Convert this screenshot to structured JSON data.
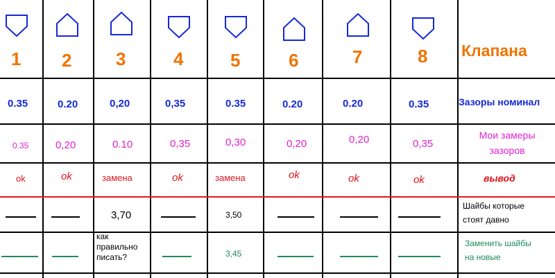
{
  "columns": [
    {
      "number": "1",
      "shape": "shield-down",
      "nominal": "0.35",
      "measured": "0.35",
      "result": "ok",
      "old_shim": "",
      "new_shim": ""
    },
    {
      "number": "2",
      "shape": "house-up",
      "nominal": "0.20",
      "measured": "0,20",
      "result": "ok",
      "old_shim": "",
      "new_shim": ""
    },
    {
      "number": "3",
      "shape": "house-up",
      "nominal": "0,20",
      "measured": "0.10",
      "result": "замена",
      "old_shim": "3,70",
      "new_shim": ""
    },
    {
      "number": "4",
      "shape": "shield-down",
      "nominal": "0,35",
      "measured": "0,35",
      "result": "ok",
      "old_shim": "",
      "new_shim": ""
    },
    {
      "number": "5",
      "shape": "shield-down",
      "nominal": "0.35",
      "measured": "0,30",
      "result": "замена",
      "old_shim": "3,50",
      "new_shim": "3,45"
    },
    {
      "number": "6",
      "shape": "house-up",
      "nominal": "0.20",
      "measured": "0,20",
      "result": "ok",
      "old_shim": "",
      "new_shim": ""
    },
    {
      "number": "7",
      "shape": "house-up",
      "nominal": "0.20",
      "measured": "0,20",
      "result": "ok",
      "old_shim": "",
      "new_shim": ""
    },
    {
      "number": "8",
      "shape": "shield-down",
      "nominal": "0.35",
      "measured": "0,35",
      "result": "ok",
      "old_shim": "",
      "new_shim": ""
    }
  ],
  "labels": {
    "title": "Клапана",
    "nominal": "Зазоры номинал",
    "measured_line1": "Мои замеры",
    "measured_line2": "зазоров",
    "result": "вывод",
    "old_line1": "Шайбы которые",
    "old_line2": "стоят давно",
    "new_line1": "Заменить шайбы",
    "new_line2": "на новые"
  },
  "note": {
    "line1": "как",
    "line2": "правильно",
    "line3": "писать?"
  },
  "colors": {
    "number": "#f07400",
    "nominal": "#1428d6",
    "measured": "#e41ed2",
    "result": "#e0141b",
    "new_shim": "#1a8a5a",
    "separator": "#e8141b"
  }
}
